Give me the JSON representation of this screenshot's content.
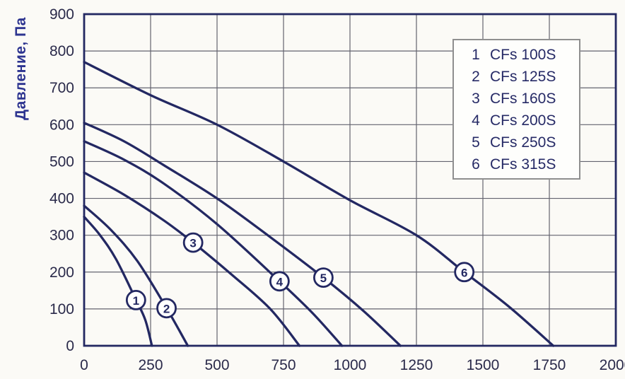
{
  "colors": {
    "curve": "#232862",
    "frame": "#232862",
    "grid": "#63636f",
    "tick_label": "#2a2a4a",
    "axis_title": "#2d3490",
    "legend_text": "#262a66",
    "legend_border": "#8f8f8f",
    "background": "#fbfaf6",
    "marker_fill": "#ffffff"
  },
  "chart_data": {
    "type": "line",
    "title": "",
    "xlabel": "",
    "ylabel": "Давление, Па",
    "xlim": [
      0,
      2000
    ],
    "ylim": [
      0,
      900
    ],
    "x_ticks": [
      0,
      250,
      500,
      750,
      1000,
      1250,
      1500,
      1750,
      2000
    ],
    "y_ticks": [
      0,
      100,
      200,
      300,
      400,
      500,
      600,
      700,
      800,
      900
    ],
    "grid": true,
    "legend_position": "top-right",
    "series": [
      {
        "id": "1",
        "name": "CFs 100S",
        "points": [
          [
            0,
            350
          ],
          [
            60,
            300
          ],
          [
            120,
            235
          ],
          [
            195,
            125
          ],
          [
            230,
            70
          ],
          [
            255,
            0
          ]
        ],
        "marker": [
          195,
          124
        ]
      },
      {
        "id": "2",
        "name": "CFs 125S",
        "points": [
          [
            0,
            380
          ],
          [
            100,
            315
          ],
          [
            200,
            230
          ],
          [
            310,
            102
          ],
          [
            390,
            0
          ]
        ],
        "marker": [
          310,
          102
        ]
      },
      {
        "id": "3",
        "name": "CFs 160S",
        "points": [
          [
            0,
            470
          ],
          [
            150,
            410
          ],
          [
            300,
            340
          ],
          [
            410,
            280
          ],
          [
            560,
            190
          ],
          [
            700,
            100
          ],
          [
            810,
            0
          ]
        ],
        "marker": [
          410,
          280
        ]
      },
      {
        "id": "4",
        "name": "CFs 200S",
        "points": [
          [
            0,
            555
          ],
          [
            150,
            505
          ],
          [
            300,
            440
          ],
          [
            500,
            330
          ],
          [
            735,
            175
          ],
          [
            860,
            88
          ],
          [
            970,
            0
          ]
        ],
        "marker": [
          735,
          175
        ]
      },
      {
        "id": "5",
        "name": "CFs 250S",
        "points": [
          [
            0,
            605
          ],
          [
            150,
            555
          ],
          [
            300,
            490
          ],
          [
            500,
            400
          ],
          [
            700,
            295
          ],
          [
            900,
            185
          ],
          [
            1050,
            95
          ],
          [
            1190,
            0
          ]
        ],
        "marker": [
          900,
          185
        ]
      },
      {
        "id": "6",
        "name": "CFs 315S",
        "points": [
          [
            0,
            770
          ],
          [
            250,
            680
          ],
          [
            500,
            600
          ],
          [
            750,
            500
          ],
          [
            1000,
            395
          ],
          [
            1250,
            300
          ],
          [
            1430,
            200
          ],
          [
            1600,
            105
          ],
          [
            1765,
            0
          ]
        ],
        "marker": [
          1430,
          200
        ]
      }
    ],
    "legend_items": [
      {
        "num": "1",
        "label": "CFs 100S"
      },
      {
        "num": "2",
        "label": "CFs 125S"
      },
      {
        "num": "3",
        "label": "CFs 160S"
      },
      {
        "num": "4",
        "label": "CFs 200S"
      },
      {
        "num": "5",
        "label": "CFs 250S"
      },
      {
        "num": "6",
        "label": "CFs 315S"
      }
    ]
  }
}
